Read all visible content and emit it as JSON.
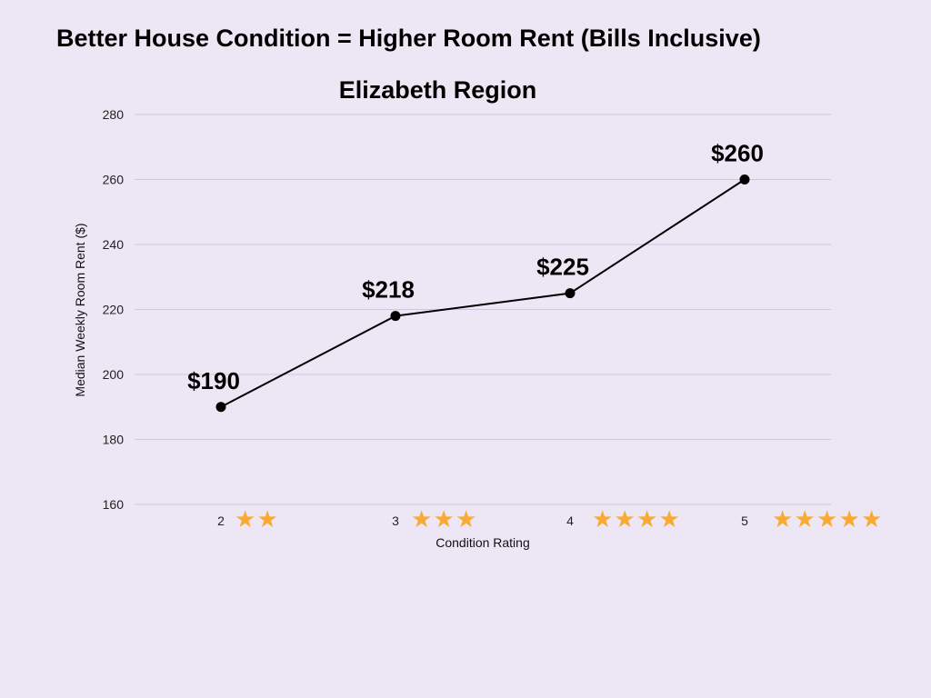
{
  "chart_data": {
    "type": "line",
    "title": "Better House Condition = Higher Room Rent (Bills Inclusive)",
    "subtitle": "Elizabeth Region",
    "xlabel": "Condition Rating",
    "ylabel": "Median Weekly Room Rent ($)",
    "categories": [
      "2",
      "3",
      "4",
      "5"
    ],
    "stars": [
      2,
      3,
      4,
      5
    ],
    "values": [
      190,
      218,
      225,
      260
    ],
    "data_labels": [
      "$190",
      "$218",
      "$225",
      "$260"
    ],
    "ylim": [
      160,
      280
    ],
    "yticks": [
      160,
      180,
      200,
      220,
      240,
      260,
      280
    ],
    "grid": true,
    "line_color": "#000000",
    "marker_color": "#000000",
    "star_color": "#f9aa33",
    "grid_color": "#cfc6dd"
  }
}
